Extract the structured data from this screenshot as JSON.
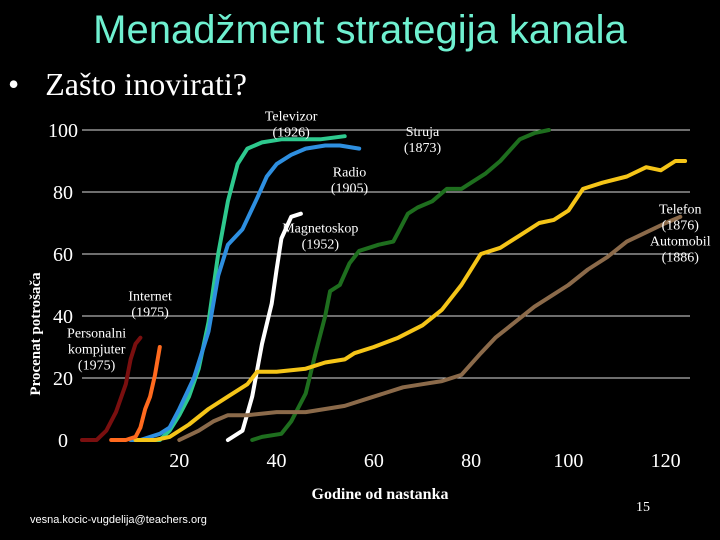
{
  "slide": {
    "title": "Menadžment strategija kanala",
    "bullet": "•",
    "question": "Zašto inovirati?",
    "email": "vesna.kocic-vugdelija@teachers.org",
    "page_number": "15"
  },
  "chart_data": {
    "type": "line",
    "title": "",
    "xlabel": "Godine od nastanka",
    "ylabel": "Procenat potrošača",
    "xlim": [
      0,
      125
    ],
    "ylim": [
      0,
      100
    ],
    "x_ticks": [
      "20",
      "40",
      "60",
      "80",
      "100",
      "120"
    ],
    "x_tick_values": [
      20,
      40,
      60,
      80,
      100,
      120
    ],
    "y_ticks": [
      "0",
      "20",
      "40",
      "60",
      "80",
      "100"
    ],
    "y_tick_values": [
      0,
      20,
      40,
      60,
      80,
      100
    ],
    "series": [
      {
        "name": "Struja (1873)",
        "color": "#1E6E1E",
        "points": [
          [
            35,
            0
          ],
          [
            37,
            1
          ],
          [
            41,
            2
          ],
          [
            43,
            6
          ],
          [
            46,
            15
          ],
          [
            48,
            28
          ],
          [
            50,
            40
          ],
          [
            51,
            48
          ],
          [
            53,
            50
          ],
          [
            55,
            57
          ],
          [
            57,
            61
          ],
          [
            59,
            62
          ],
          [
            61,
            63
          ],
          [
            64,
            64
          ],
          [
            65,
            67
          ],
          [
            67,
            73
          ],
          [
            69,
            75
          ],
          [
            72,
            77
          ],
          [
            75,
            81
          ],
          [
            78,
            81
          ],
          [
            80,
            83
          ],
          [
            83,
            86
          ],
          [
            86,
            90
          ],
          [
            90,
            97
          ],
          [
            93,
            99
          ],
          [
            96,
            100
          ]
        ]
      },
      {
        "name": "Televizor (1926)",
        "color": "#2EC98E",
        "points": [
          [
            14,
            0
          ],
          [
            16,
            0
          ],
          [
            18,
            3
          ],
          [
            20,
            8
          ],
          [
            22,
            14
          ],
          [
            24,
            23
          ],
          [
            26,
            38
          ],
          [
            28,
            60
          ],
          [
            30,
            77
          ],
          [
            32,
            89
          ],
          [
            34,
            94
          ],
          [
            37,
            96
          ],
          [
            41,
            97
          ],
          [
            45,
            97
          ],
          [
            49,
            97
          ],
          [
            54,
            98
          ]
        ]
      },
      {
        "name": "Radio (1905)",
        "color": "#2E8FE0",
        "points": [
          [
            10,
            0
          ],
          [
            12,
            0
          ],
          [
            14,
            1
          ],
          [
            16,
            2
          ],
          [
            18,
            4
          ],
          [
            20,
            10
          ],
          [
            23,
            20
          ],
          [
            26,
            35
          ],
          [
            28,
            53
          ],
          [
            30,
            63
          ],
          [
            33,
            68
          ],
          [
            36,
            78
          ],
          [
            38,
            85
          ],
          [
            40,
            89
          ],
          [
            43,
            92
          ],
          [
            46,
            94
          ],
          [
            50,
            95
          ],
          [
            53,
            95
          ],
          [
            57,
            94
          ]
        ]
      },
      {
        "name": "Magnetoskop (1952)",
        "color": "#FFFFFF",
        "points": [
          [
            30,
            0
          ],
          [
            33,
            3
          ],
          [
            35,
            14
          ],
          [
            37,
            31
          ],
          [
            39,
            44
          ],
          [
            40,
            55
          ],
          [
            41,
            65
          ],
          [
            43,
            72
          ],
          [
            45,
            73
          ]
        ]
      },
      {
        "name": "Telefon (1876)",
        "color": "#F5C518",
        "points": [
          [
            11,
            0
          ],
          [
            15,
            0
          ],
          [
            18,
            1
          ],
          [
            22,
            5
          ],
          [
            26,
            10
          ],
          [
            30,
            14
          ],
          [
            34,
            18
          ],
          [
            36,
            22
          ],
          [
            40,
            22
          ],
          [
            46,
            23
          ],
          [
            50,
            25
          ],
          [
            54,
            26
          ],
          [
            56,
            28
          ],
          [
            60,
            30
          ],
          [
            65,
            33
          ],
          [
            70,
            37
          ],
          [
            74,
            42
          ],
          [
            78,
            50
          ],
          [
            80,
            55
          ],
          [
            82,
            60
          ],
          [
            86,
            62
          ],
          [
            90,
            66
          ],
          [
            94,
            70
          ],
          [
            97,
            71
          ],
          [
            100,
            74
          ],
          [
            103,
            81
          ],
          [
            107,
            83
          ],
          [
            112,
            85
          ],
          [
            116,
            88
          ],
          [
            119,
            87
          ],
          [
            122,
            90
          ],
          [
            124,
            90
          ]
        ]
      },
      {
        "name": "Automobil (1886)",
        "color": "#8B6A4A",
        "points": [
          [
            20,
            0
          ],
          [
            24,
            3
          ],
          [
            27,
            6
          ],
          [
            30,
            8
          ],
          [
            34,
            8
          ],
          [
            40,
            9
          ],
          [
            46,
            9
          ],
          [
            50,
            10
          ],
          [
            54,
            11
          ],
          [
            58,
            13
          ],
          [
            62,
            15
          ],
          [
            66,
            17
          ],
          [
            70,
            18
          ],
          [
            74,
            19
          ],
          [
            78,
            21
          ],
          [
            82,
            28
          ],
          [
            85,
            33
          ],
          [
            89,
            38
          ],
          [
            93,
            43
          ],
          [
            97,
            47
          ],
          [
            100,
            50
          ],
          [
            104,
            55
          ],
          [
            108,
            59
          ],
          [
            112,
            64
          ],
          [
            116,
            67
          ],
          [
            120,
            70
          ],
          [
            123,
            72
          ]
        ]
      },
      {
        "name": "Internet (1975)",
        "color": "#FF6A1E",
        "points": [
          [
            6,
            0
          ],
          [
            9,
            0
          ],
          [
            11,
            1
          ],
          [
            12,
            4
          ],
          [
            13,
            10
          ],
          [
            14,
            14
          ],
          [
            15,
            21
          ],
          [
            16,
            30
          ]
        ]
      },
      {
        "name": "Personalni kompjuter (1975)",
        "color": "#7A0F0F",
        "points": [
          [
            0,
            0
          ],
          [
            3,
            0
          ],
          [
            5,
            3
          ],
          [
            7,
            9
          ],
          [
            9,
            18
          ],
          [
            10,
            26
          ],
          [
            11,
            31
          ],
          [
            12,
            33
          ]
        ]
      }
    ],
    "annotations": [
      {
        "lines": [
          "Televizor",
          "(1926)"
        ],
        "x": 43,
        "y": 103
      },
      {
        "lines": [
          "Struja",
          "(1873)"
        ],
        "x": 70,
        "y": 98
      },
      {
        "lines": [
          "Radio",
          "(1905)"
        ],
        "x": 55,
        "y": 85
      },
      {
        "lines": [
          "Magnetoskop",
          "(1952)"
        ],
        "x": 49,
        "y": 67
      },
      {
        "lines": [
          "Telefon",
          "(1876)",
          "Automobil",
          "(1886)"
        ],
        "x": 123,
        "y": 73
      },
      {
        "lines": [
          "Internet",
          "(1975)"
        ],
        "x": 14,
        "y": 45
      },
      {
        "lines": [
          "Personalni",
          "kompjuter",
          "(1975)"
        ],
        "x": 3,
        "y": 33
      }
    ]
  }
}
